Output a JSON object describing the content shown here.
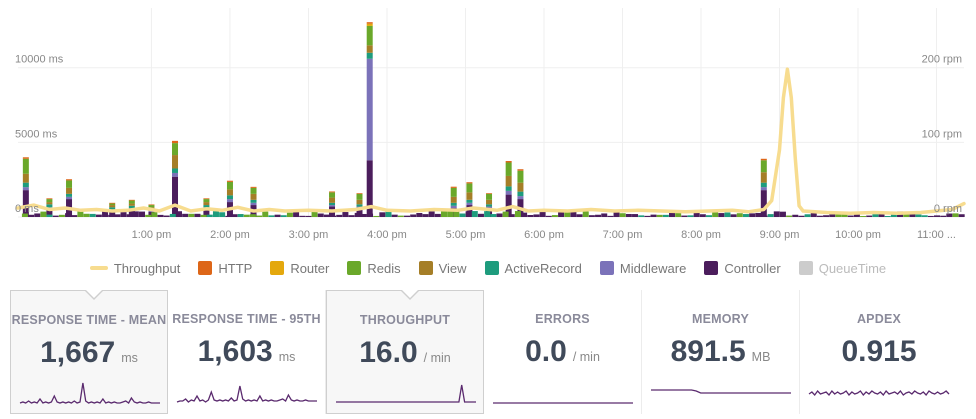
{
  "chart_data": {
    "type": "bar",
    "title": "",
    "y_left": {
      "ticks": [
        {
          "value": 0,
          "label": "0 ms"
        },
        {
          "value": 5000,
          "label": "5000 ms"
        },
        {
          "value": 10000,
          "label": "10000 ms"
        }
      ],
      "max": 14000
    },
    "y_right": {
      "ticks": [
        {
          "value": 0,
          "label": "0 rpm"
        },
        {
          "value": 100,
          "label": "100 rpm"
        },
        {
          "value": 200,
          "label": "200 rpm"
        }
      ],
      "max": 280
    },
    "x_ticks": [
      {
        "hour": 13,
        "label": "1:00 pm"
      },
      {
        "hour": 14,
        "label": "2:00 pm"
      },
      {
        "hour": 15,
        "label": "3:00 pm"
      },
      {
        "hour": 16,
        "label": "4:00 pm"
      },
      {
        "hour": 17,
        "label": "5:00 pm"
      },
      {
        "hour": 18,
        "label": "6:00 pm"
      },
      {
        "hour": 19,
        "label": "7:00 pm"
      },
      {
        "hour": 20,
        "label": "8:00 pm"
      },
      {
        "hour": 21,
        "label": "9:00 pm"
      },
      {
        "hour": 22,
        "label": "10:00 pm"
      },
      {
        "hour": 23,
        "label": "11:00 ..."
      }
    ],
    "x_range": [
      11.3,
      23.35
    ],
    "components": [
      "Controller",
      "Middleware",
      "ActiveRecord",
      "View",
      "Redis",
      "Router",
      "HTTP"
    ],
    "colors": {
      "Throughput": "#f7dc8f",
      "HTTP": "#dd6618",
      "Router": "#e4a80d",
      "Redis": "#6aa82a",
      "View": "#a57e27",
      "ActiveRecord": "#1e9c7d",
      "Middleware": "#7b72b9",
      "Controller": "#4b1d5c",
      "QueueTime": "#cccccc"
    },
    "bars": [
      {
        "t": 11.4,
        "values": [
          1800,
          200,
          300,
          600,
          1000,
          0,
          100
        ]
      },
      {
        "t": 11.7,
        "values": [
          500,
          150,
          200,
          150,
          200,
          0,
          50
        ]
      },
      {
        "t": 11.95,
        "values": [
          1200,
          150,
          200,
          400,
          500,
          0,
          80
        ]
      },
      {
        "t": 12.5,
        "values": [
          400,
          100,
          150,
          150,
          100,
          0,
          50
        ]
      },
      {
        "t": 12.75,
        "values": [
          500,
          100,
          150,
          150,
          200,
          0,
          50
        ]
      },
      {
        "t": 13.0,
        "values": [
          350,
          100,
          100,
          100,
          150,
          0,
          40
        ]
      },
      {
        "t": 13.3,
        "values": [
          2700,
          250,
          300,
          900,
          800,
          0,
          150
        ]
      },
      {
        "t": 13.7,
        "values": [
          500,
          150,
          150,
          200,
          200,
          0,
          50
        ]
      },
      {
        "t": 14.0,
        "values": [
          1000,
          200,
          250,
          400,
          500,
          0,
          80
        ]
      },
      {
        "t": 14.3,
        "values": [
          800,
          150,
          200,
          400,
          400,
          0,
          70
        ]
      },
      {
        "t": 15.3,
        "values": [
          700,
          100,
          150,
          350,
          350,
          0,
          60
        ]
      },
      {
        "t": 15.65,
        "values": [
          600,
          100,
          150,
          300,
          400,
          0,
          50
        ]
      },
      {
        "t": 15.78,
        "values": [
          3800,
          6800,
          400,
          500,
          1300,
          150,
          100
        ]
      },
      {
        "t": 16.85,
        "values": [
          600,
          150,
          200,
          400,
          600,
          0,
          80
        ]
      },
      {
        "t": 17.05,
        "values": [
          800,
          150,
          200,
          500,
          600,
          0,
          80
        ]
      },
      {
        "t": 17.3,
        "values": [
          600,
          100,
          150,
          300,
          400,
          0,
          50
        ]
      },
      {
        "t": 17.55,
        "values": [
          1500,
          250,
          300,
          700,
          900,
          0,
          100
        ]
      },
      {
        "t": 17.7,
        "values": [
          1200,
          200,
          300,
          600,
          800,
          0,
          100
        ]
      },
      {
        "t": 20.8,
        "values": [
          1800,
          200,
          300,
          700,
          800,
          0,
          100
        ]
      }
    ],
    "throughput": [
      [
        11.3,
        12
      ],
      [
        11.5,
        16
      ],
      [
        11.7,
        10
      ],
      [
        11.9,
        12
      ],
      [
        12.1,
        9
      ],
      [
        12.3,
        10
      ],
      [
        12.5,
        8
      ],
      [
        12.7,
        9
      ],
      [
        12.9,
        12
      ],
      [
        13.1,
        8
      ],
      [
        13.3,
        16
      ],
      [
        13.5,
        8
      ],
      [
        13.7,
        11
      ],
      [
        13.9,
        9
      ],
      [
        14.1,
        13
      ],
      [
        14.3,
        8
      ],
      [
        14.5,
        10
      ],
      [
        14.7,
        8
      ],
      [
        15.0,
        9
      ],
      [
        15.3,
        8
      ],
      [
        15.6,
        10
      ],
      [
        15.8,
        14
      ],
      [
        16.0,
        9
      ],
      [
        16.3,
        8
      ],
      [
        16.6,
        10
      ],
      [
        16.9,
        9
      ],
      [
        17.1,
        12
      ],
      [
        17.4,
        9
      ],
      [
        17.6,
        14
      ],
      [
        17.8,
        8
      ],
      [
        18.0,
        9
      ],
      [
        18.3,
        8
      ],
      [
        18.6,
        10
      ],
      [
        18.9,
        8
      ],
      [
        19.2,
        9
      ],
      [
        19.5,
        8
      ],
      [
        19.8,
        7
      ],
      [
        20.1,
        8
      ],
      [
        20.4,
        9
      ],
      [
        20.6,
        7
      ],
      [
        20.8,
        10
      ],
      [
        20.9,
        22
      ],
      [
        21.0,
        90
      ],
      [
        21.05,
        160
      ],
      [
        21.1,
        198
      ],
      [
        21.15,
        160
      ],
      [
        21.2,
        80
      ],
      [
        21.25,
        15
      ],
      [
        21.3,
        8
      ],
      [
        21.6,
        6
      ],
      [
        21.9,
        5
      ],
      [
        22.2,
        6
      ],
      [
        22.5,
        5
      ],
      [
        22.8,
        6
      ],
      [
        23.0,
        8
      ],
      [
        23.2,
        10
      ],
      [
        23.35,
        18
      ]
    ]
  },
  "legend": [
    {
      "key": "Throughput",
      "label": "Throughput",
      "shape": "line"
    },
    {
      "key": "HTTP",
      "label": "HTTP"
    },
    {
      "key": "Router",
      "label": "Router"
    },
    {
      "key": "Redis",
      "label": "Redis"
    },
    {
      "key": "View",
      "label": "View"
    },
    {
      "key": "ActiveRecord",
      "label": "ActiveRecord"
    },
    {
      "key": "Middleware",
      "label": "Middleware"
    },
    {
      "key": "Controller",
      "label": "Controller"
    },
    {
      "key": "QueueTime",
      "label": "QueueTime",
      "muted": true
    }
  ],
  "cards": [
    {
      "title": "RESPONSE TIME - MEAN",
      "value": "1,667",
      "unit": "ms",
      "active": true,
      "spark_color": "#5a2a6e",
      "spark": [
        2,
        3,
        2,
        4,
        2,
        3,
        2,
        6,
        2,
        3,
        2,
        3,
        9,
        3,
        2,
        3,
        2,
        3,
        2,
        4,
        2,
        3,
        22,
        4,
        2,
        3,
        2,
        3,
        2,
        6,
        2,
        3,
        2,
        3,
        2,
        2,
        3,
        4,
        2,
        7,
        3,
        2,
        3,
        2,
        2,
        3,
        2,
        2,
        2,
        2
      ]
    },
    {
      "title": "RESPONSE TIME - 95TH",
      "value": "1,603",
      "unit": "ms",
      "active": false,
      "spark_color": "#5a2a6e",
      "spark": [
        2,
        3,
        3,
        5,
        2,
        4,
        3,
        8,
        3,
        4,
        2,
        4,
        12,
        4,
        3,
        4,
        3,
        4,
        3,
        6,
        3,
        4,
        18,
        5,
        3,
        4,
        3,
        4,
        3,
        8,
        3,
        4,
        3,
        4,
        3,
        3,
        4,
        5,
        3,
        9,
        4,
        3,
        4,
        3,
        3,
        4,
        3,
        3,
        3,
        3
      ]
    },
    {
      "title": "THROUGHPUT",
      "value": "16.0",
      "unit": "/ min",
      "active": true,
      "spark_color": "#5a2a6e",
      "spark": [
        3,
        3,
        3,
        3,
        3,
        3,
        3,
        3,
        3,
        3,
        3,
        3,
        3,
        3,
        3,
        3,
        3,
        3,
        3,
        3,
        3,
        3,
        3,
        3,
        3,
        3,
        3,
        3,
        3,
        3,
        3,
        3,
        3,
        3,
        3,
        3,
        3,
        3,
        3,
        3,
        3,
        3,
        3,
        3,
        20,
        3,
        3,
        3,
        3,
        3
      ]
    },
    {
      "title": "ERRORS",
      "value": "0.0",
      "unit": "/ min",
      "active": false,
      "spark_color": "#5a2a6e",
      "spark": [
        1,
        1,
        1,
        1,
        1,
        1,
        1,
        1,
        1,
        1,
        1,
        1,
        1,
        1,
        1,
        1,
        1,
        1,
        1,
        1
      ]
    },
    {
      "title": "MEMORY",
      "value": "891.5",
      "unit": "MB",
      "active": false,
      "spark_color": "#5a2a6e",
      "spark": [
        14,
        14,
        14,
        14,
        14,
        14,
        14,
        14,
        14,
        14,
        13,
        11,
        11,
        11,
        11,
        11,
        11,
        11,
        11,
        11,
        11,
        11,
        11,
        11,
        11,
        11,
        11,
        11,
        11,
        11,
        11,
        11
      ]
    },
    {
      "title": "APDEX",
      "value": "0.915",
      "unit": "",
      "active": false,
      "spark_color": "#5a2a6e",
      "spark": [
        10,
        12,
        9,
        13,
        10,
        11,
        12,
        9,
        13,
        10,
        12,
        10,
        11,
        13,
        9,
        12,
        10,
        11,
        13,
        9,
        12,
        10,
        13,
        11,
        10,
        12,
        9,
        13,
        10,
        11,
        12,
        10,
        13,
        9,
        11,
        12,
        10,
        13,
        11,
        10,
        12,
        9,
        13,
        11,
        10,
        12,
        10,
        11,
        13,
        10
      ]
    }
  ]
}
